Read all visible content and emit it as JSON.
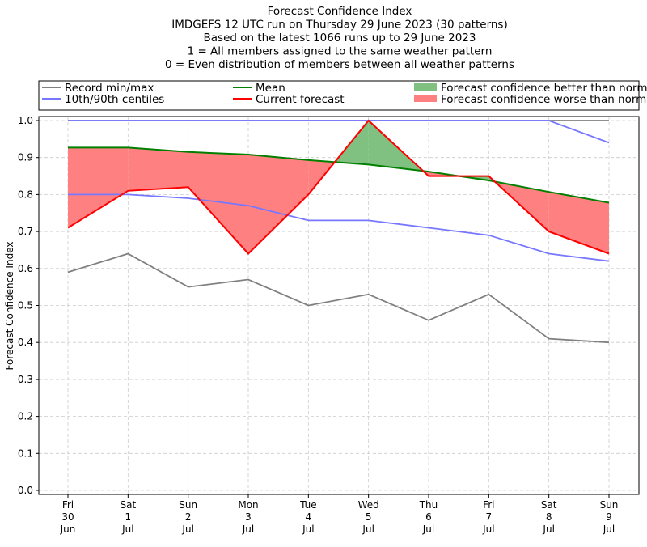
{
  "chart_data": {
    "type": "line",
    "title_lines": [
      "Forecast Confidence Index",
      "IMDGEFS 12 UTC run on Thursday 29 June 2023 (30 patterns)",
      "Based on the latest 1066 runs up to 29 June 2023",
      "1 = All members assigned to the same weather pattern",
      "0 = Even distribution of members between all weather patterns"
    ],
    "ylabel": "Forecast Confidence Index",
    "xlabel": "",
    "ylim": [
      0.0,
      1.0
    ],
    "yticks": [
      "0.0",
      "0.1",
      "0.2",
      "0.3",
      "0.4",
      "0.5",
      "0.6",
      "0.7",
      "0.8",
      "0.9",
      "1.0"
    ],
    "grid": true,
    "legend_placement": "top, above plot",
    "categories": [
      [
        "Fri",
        "30",
        "Jun"
      ],
      [
        "Sat",
        "1",
        "Jul"
      ],
      [
        "Sun",
        "2",
        "Jul"
      ],
      [
        "Mon",
        "3",
        "Jul"
      ],
      [
        "Tue",
        "4",
        "Jul"
      ],
      [
        "Wed",
        "5",
        "Jul"
      ],
      [
        "Thu",
        "6",
        "Jul"
      ],
      [
        "Fri",
        "7",
        "Jul"
      ],
      [
        "Sat",
        "8",
        "Jul"
      ],
      [
        "Sun",
        "9",
        "Jul"
      ]
    ],
    "series": [
      {
        "name": "Record min/max",
        "role": "record_min",
        "color": "#808080",
        "values": [
          0.59,
          0.64,
          0.55,
          0.57,
          0.5,
          0.53,
          0.46,
          0.53,
          0.41,
          0.4
        ]
      },
      {
        "name": "Record min/max",
        "role": "record_max",
        "color": "#808080",
        "values": [
          1.0,
          1.0,
          1.0,
          1.0,
          1.0,
          1.0,
          1.0,
          1.0,
          1.0,
          1.0
        ]
      },
      {
        "name": "10th/90th centiles",
        "role": "p10",
        "color": "#7777ff",
        "values": [
          0.8,
          0.8,
          0.79,
          0.77,
          0.73,
          0.73,
          0.71,
          0.69,
          0.64,
          0.62
        ]
      },
      {
        "name": "10th/90th centiles",
        "role": "p90",
        "color": "#7777ff",
        "values": [
          1.0,
          1.0,
          1.0,
          1.0,
          1.0,
          1.0,
          1.0,
          1.0,
          1.0,
          0.94
        ]
      },
      {
        "name": "Mean",
        "role": "mean",
        "color": "#008000",
        "values": [
          0.927,
          0.927,
          0.915,
          0.908,
          0.893,
          0.881,
          0.862,
          0.838,
          0.807,
          0.778
        ]
      },
      {
        "name": "Current forecast",
        "role": "current",
        "color": "#ff0000",
        "values": [
          0.71,
          0.81,
          0.82,
          0.64,
          0.8,
          1.0,
          0.85,
          0.85,
          0.7,
          0.64
        ]
      }
    ],
    "legend": [
      {
        "label": "Record min/max",
        "kind": "line",
        "color": "#808080"
      },
      {
        "label": "10th/90th centiles",
        "kind": "line",
        "color": "#7777ff"
      },
      {
        "label": "Mean",
        "kind": "line",
        "color": "#008000"
      },
      {
        "label": "Current forecast",
        "kind": "line",
        "color": "#ff0000"
      },
      {
        "label": "Forecast confidence better than normal",
        "kind": "patch",
        "color": "#80c080"
      },
      {
        "label": "Forecast confidence worse than normal",
        "kind": "patch",
        "color": "#ff8080"
      }
    ]
  }
}
